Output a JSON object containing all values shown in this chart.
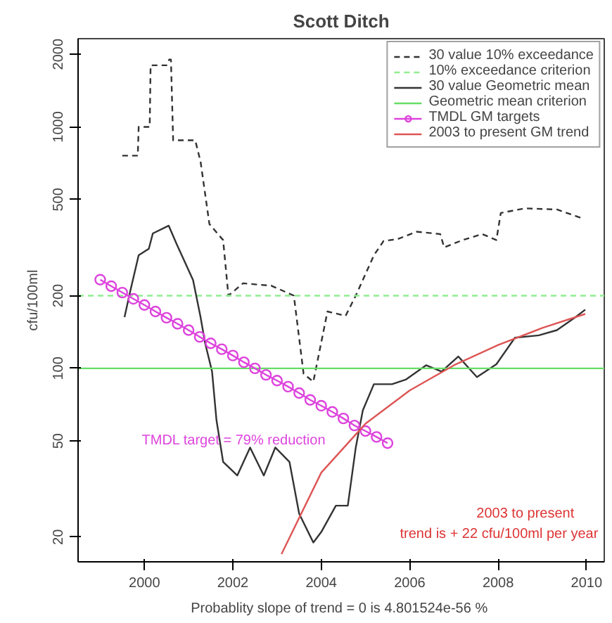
{
  "chart_data": {
    "type": "line",
    "title": "Scott Ditch",
    "ylabel": "cfu/100ml",
    "log": "y",
    "grid": false,
    "legend": "top right",
    "xlim": [
      1998.5,
      2010.4
    ],
    "ylim": [
      15.8,
      2320
    ],
    "xticks": [
      2000,
      2002,
      2004,
      2006,
      2008,
      2010
    ],
    "yticks": [
      20,
      50,
      100,
      200,
      500,
      1000,
      2000
    ],
    "series": [
      {
        "name": "30 value 10% exceedance",
        "color": "#333333",
        "line_style": "dashed",
        "marker": "none",
        "x": [
          1999.5,
          1999.85,
          1999.87,
          2000.12,
          2000.14,
          2000.5,
          2000.56,
          2000.6,
          2000.65,
          2001.15,
          2001.27,
          2001.47,
          2001.78,
          2001.9,
          2002.23,
          2002.87,
          2003.38,
          2003.6,
          2003.82,
          2004.14,
          2004.55,
          2004.78,
          2005.19,
          2005.41,
          2005.73,
          2006.15,
          2006.69,
          2006.78,
          2007.2,
          2007.64,
          2007.96,
          2008.06,
          2008.6,
          2009.33,
          2009.87
        ],
        "values": [
          760,
          760,
          1000,
          1000,
          1800,
          1800,
          1900,
          1900,
          880,
          880,
          718,
          396,
          340,
          200,
          225,
          220,
          200,
          95,
          88,
          172,
          165,
          200,
          294,
          337,
          343,
          368,
          360,
          317,
          340,
          360,
          340,
          440,
          460,
          455,
          420
        ]
      },
      {
        "name": "10% exceedance criterion",
        "color": "#90ee90",
        "line_style": "dashed",
        "marker": "none",
        "x": [
          1998.5,
          2010.4
        ],
        "values": [
          200,
          200
        ]
      },
      {
        "name": "30 value Geometric mean",
        "color": "#333333",
        "line_style": "solid",
        "marker": "none",
        "x": [
          1999.55,
          1999.68,
          1999.87,
          2000.1,
          2000.19,
          2000.55,
          2000.73,
          2001.1,
          2001.27,
          2001.37,
          2001.53,
          2001.63,
          2001.78,
          2002.1,
          2002.39,
          2002.7,
          2002.96,
          2003.28,
          2003.5,
          2003.82,
          2004.0,
          2004.33,
          2004.6,
          2004.78,
          2004.94,
          2005.19,
          2005.6,
          2005.92,
          2006.37,
          2006.72,
          2007.1,
          2007.52,
          2007.96,
          2008.38,
          2008.92,
          2009.33,
          2009.75,
          2009.97
        ],
        "values": [
          163,
          209,
          294,
          313,
          362,
          390,
          327,
          232,
          163,
          128,
          97,
          61,
          41,
          36,
          47,
          36,
          47,
          41,
          25,
          19,
          21,
          27,
          27,
          47,
          67,
          86,
          86,
          90,
          103,
          97,
          112,
          92,
          104,
          134,
          137,
          144,
          163,
          175
        ]
      },
      {
        "name": "Geometric mean criterion",
        "color": "#66dd66",
        "line_style": "solid",
        "marker": "none",
        "x": [
          1998.5,
          2010.4
        ],
        "values": [
          100,
          100
        ]
      },
      {
        "name": "TMDL GM targets",
        "color": "#dd44dd",
        "line_style": "solid",
        "marker": "circle",
        "x": [
          1999.0,
          1999.25,
          1999.5,
          1999.75,
          2000.0,
          2000.25,
          2000.5,
          2000.75,
          2001.0,
          2001.25,
          2001.5,
          2001.75,
          2002.0,
          2002.25,
          2002.5,
          2002.75,
          2003.0,
          2003.25,
          2003.5,
          2003.75,
          2004.0,
          2004.25,
          2004.5,
          2004.75,
          2005.0,
          2005.25,
          2005.5
        ],
        "values": [
          233,
          219,
          206,
          194,
          183,
          172,
          162,
          153,
          144,
          135,
          127,
          120,
          113,
          106,
          100,
          94,
          89,
          84,
          79,
          74,
          70,
          66,
          62,
          58,
          55,
          52,
          49
        ]
      },
      {
        "name": "2003 to present GM trend",
        "color": "#dd5555",
        "line_style": "solid",
        "marker": "none",
        "x": [
          2003.1,
          2004,
          2005,
          2006,
          2007,
          2008,
          2009,
          2009.97
        ],
        "values": [
          17,
          37,
          59,
          81,
          103,
          125,
          147,
          168
        ]
      }
    ],
    "annotations": [
      "TMDL target = 79% reduction",
      "2003 to present",
      "trend is + 22 cfu/100ml per year",
      "Probablity slope of trend = 0 is  4.801524e-56 %"
    ]
  }
}
